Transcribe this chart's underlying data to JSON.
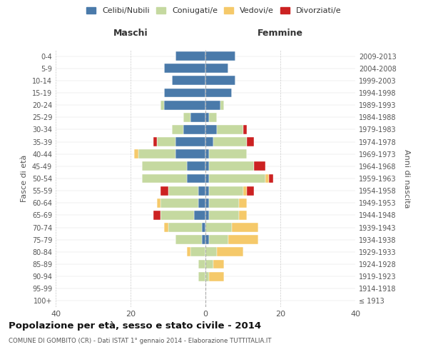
{
  "age_groups": [
    "100+",
    "95-99",
    "90-94",
    "85-89",
    "80-84",
    "75-79",
    "70-74",
    "65-69",
    "60-64",
    "55-59",
    "50-54",
    "45-49",
    "40-44",
    "35-39",
    "30-34",
    "25-29",
    "20-24",
    "15-19",
    "10-14",
    "5-9",
    "0-4"
  ],
  "birth_years": [
    "≤ 1913",
    "1914-1918",
    "1919-1923",
    "1924-1928",
    "1929-1933",
    "1934-1938",
    "1939-1943",
    "1944-1948",
    "1949-1953",
    "1954-1958",
    "1959-1963",
    "1964-1968",
    "1969-1973",
    "1974-1978",
    "1979-1983",
    "1984-1988",
    "1989-1993",
    "1994-1998",
    "1999-2003",
    "2004-2008",
    "2009-2013"
  ],
  "male": {
    "celibi": [
      0,
      0,
      0,
      0,
      0,
      1,
      1,
      3,
      2,
      2,
      5,
      5,
      8,
      8,
      6,
      4,
      11,
      11,
      9,
      11,
      8
    ],
    "coniugati": [
      0,
      0,
      2,
      2,
      4,
      7,
      9,
      9,
      10,
      8,
      12,
      12,
      10,
      5,
      3,
      2,
      1,
      0,
      0,
      0,
      0
    ],
    "vedovi": [
      0,
      0,
      0,
      0,
      1,
      0,
      1,
      0,
      1,
      0,
      0,
      0,
      1,
      0,
      0,
      0,
      0,
      0,
      0,
      0,
      0
    ],
    "divorziati": [
      0,
      0,
      0,
      0,
      0,
      0,
      0,
      2,
      0,
      2,
      0,
      0,
      0,
      1,
      0,
      0,
      0,
      0,
      0,
      0,
      0
    ]
  },
  "female": {
    "nubili": [
      0,
      0,
      0,
      0,
      0,
      1,
      0,
      1,
      1,
      1,
      1,
      1,
      1,
      2,
      3,
      1,
      4,
      7,
      8,
      6,
      8
    ],
    "coniugate": [
      0,
      0,
      1,
      2,
      3,
      5,
      7,
      8,
      8,
      9,
      15,
      12,
      10,
      9,
      7,
      2,
      1,
      0,
      0,
      0,
      0
    ],
    "vedove": [
      0,
      0,
      4,
      3,
      7,
      8,
      7,
      2,
      2,
      1,
      1,
      0,
      0,
      0,
      0,
      0,
      0,
      0,
      0,
      0,
      0
    ],
    "divorziate": [
      0,
      0,
      0,
      0,
      0,
      0,
      0,
      0,
      0,
      2,
      1,
      3,
      0,
      2,
      1,
      0,
      0,
      0,
      0,
      0,
      0
    ]
  },
  "colors": {
    "celibi": "#4a7aaa",
    "coniugati": "#c5d9a0",
    "vedovi": "#f5c96a",
    "divorziati": "#cc2222"
  },
  "xlim": 40,
  "title": "Popolazione per età, sesso e stato civile - 2014",
  "subtitle": "COMUNE DI GOMBITO (CR) - Dati ISTAT 1° gennaio 2014 - Elaborazione TUTTITALIA.IT",
  "ylabel": "Fasce di età",
  "ylabel_right": "Anni di nascita",
  "legend_labels": [
    "Celibi/Nubili",
    "Coniugati/e",
    "Vedovi/e",
    "Divorziati/e"
  ],
  "maschi_label": "Maschi",
  "femmine_label": "Femmine"
}
